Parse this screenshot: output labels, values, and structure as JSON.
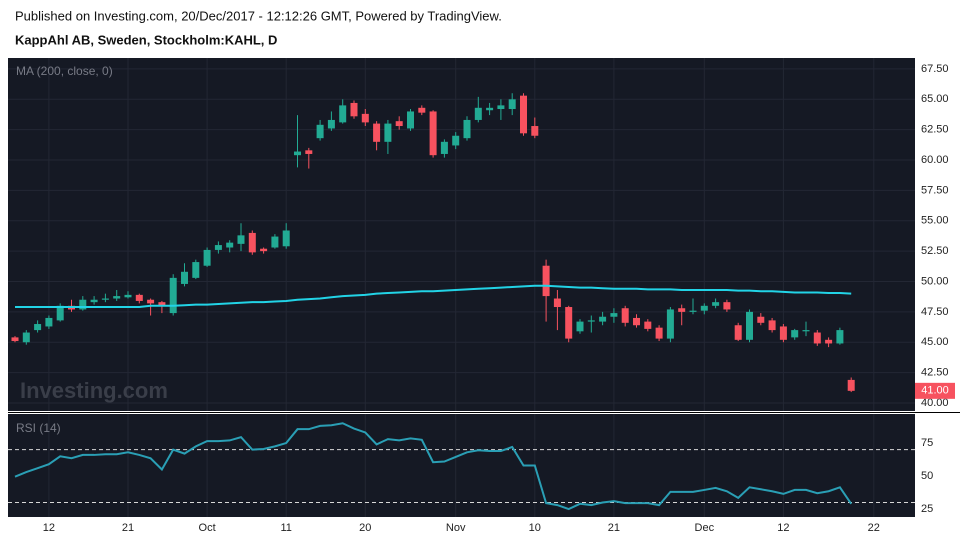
{
  "header": {
    "published": "Published on Investing.com, 20/Dec/2017 - 12:12:26 GMT, Powered by TradingView.",
    "symbol": "KappAhl AB, Sweden, Stockholm:KAHL, D",
    "watermark": "Investing.com"
  },
  "chart_data": [
    {
      "type": "candlestick",
      "series_label": "MA (200, close, 0)",
      "categories": [
        "2017-09-07",
        "2017-09-08",
        "2017-09-11",
        "2017-09-12",
        "2017-09-13",
        "2017-09-14",
        "2017-09-15",
        "2017-09-18",
        "2017-09-19",
        "2017-09-20",
        "2017-09-21",
        "2017-09-22",
        "2017-09-25",
        "2017-09-26",
        "2017-09-27",
        "2017-09-28",
        "2017-09-29",
        "2017-10-02",
        "2017-10-03",
        "2017-10-04",
        "2017-10-05",
        "2017-10-06",
        "2017-10-09",
        "2017-10-10",
        "2017-10-11",
        "2017-10-12",
        "2017-10-13",
        "2017-10-16",
        "2017-10-17",
        "2017-10-18",
        "2017-10-19",
        "2017-10-20",
        "2017-10-23",
        "2017-10-24",
        "2017-10-25",
        "2017-10-26",
        "2017-10-27",
        "2017-10-30",
        "2017-10-31",
        "2017-11-01",
        "2017-11-02",
        "2017-11-03",
        "2017-11-06",
        "2017-11-07",
        "2017-11-08",
        "2017-11-09",
        "2017-11-10",
        "2017-11-13",
        "2017-11-14",
        "2017-11-15",
        "2017-11-16",
        "2017-11-17",
        "2017-11-20",
        "2017-11-21",
        "2017-11-22",
        "2017-11-23",
        "2017-11-24",
        "2017-11-27",
        "2017-11-28",
        "2017-11-29",
        "2017-11-30",
        "2017-12-01",
        "2017-12-04",
        "2017-12-05",
        "2017-12-06",
        "2017-12-07",
        "2017-12-08",
        "2017-12-11",
        "2017-12-12",
        "2017-12-13",
        "2017-12-14",
        "2017-12-15",
        "2017-12-18",
        "2017-12-19",
        "2017-12-20"
      ],
      "open": [
        45.4,
        45.0,
        46.0,
        46.3,
        46.8,
        48.0,
        47.7,
        48.3,
        48.5,
        48.6,
        48.7,
        48.9,
        48.5,
        48.3,
        47.4,
        49.8,
        50.3,
        51.3,
        52.6,
        52.8,
        53.1,
        54.0,
        52.7,
        52.8,
        52.9,
        60.4,
        60.8,
        61.8,
        62.6,
        63.1,
        64.7,
        63.8,
        63.0,
        61.5,
        63.2,
        62.6,
        64.3,
        64.0,
        60.5,
        61.2,
        61.8,
        63.3,
        64.1,
        64.2,
        64.2,
        65.3,
        62.8,
        51.3,
        48.6,
        47.9,
        45.9,
        46.7,
        46.7,
        47.1,
        47.8,
        47.0,
        46.7,
        46.2,
        45.3,
        47.8,
        47.5,
        47.6,
        48.0,
        48.3,
        46.4,
        45.2,
        47.1,
        46.8,
        46.3,
        45.4,
        45.9,
        45.8,
        45.2,
        44.9,
        41.9
      ],
      "high": [
        45.5,
        46.0,
        46.8,
        47.2,
        48.2,
        48.5,
        48.8,
        48.8,
        49.0,
        49.3,
        49.2,
        49.0,
        48.6,
        48.4,
        50.6,
        51.5,
        51.8,
        52.8,
        53.3,
        53.4,
        54.8,
        54.2,
        52.8,
        53.9,
        54.8,
        63.7,
        61.0,
        63.3,
        64.0,
        65.0,
        64.9,
        64.2,
        63.2,
        63.3,
        63.6,
        64.2,
        64.5,
        64.1,
        61.7,
        62.3,
        63.6,
        65.2,
        64.7,
        65.0,
        65.5,
        65.5,
        63.5,
        51.8,
        49.3,
        48.0,
        46.9,
        47.2,
        47.5,
        47.8,
        48.0,
        47.3,
        46.9,
        46.4,
        47.9,
        48.1,
        48.6,
        48.2,
        48.6,
        48.5,
        46.6,
        47.7,
        47.4,
        47.0,
        46.5,
        46.1,
        46.7,
        46.0,
        45.4,
        46.2,
        42.1
      ],
      "low": [
        45.0,
        44.8,
        45.8,
        46.1,
        46.7,
        47.5,
        47.6,
        48.1,
        48.3,
        48.4,
        48.6,
        48.2,
        47.2,
        47.4,
        47.2,
        49.6,
        50.2,
        51.2,
        52.3,
        52.4,
        52.5,
        52.2,
        52.3,
        52.7,
        52.7,
        59.4,
        59.3,
        61.6,
        62.4,
        63.0,
        63.4,
        62.8,
        60.8,
        60.5,
        62.5,
        62.4,
        63.7,
        60.2,
        60.2,
        60.9,
        61.6,
        63.1,
        63.7,
        63.3,
        63.7,
        62.0,
        61.8,
        46.7,
        46.0,
        45.0,
        45.7,
        45.8,
        46.4,
        46.6,
        46.3,
        46.2,
        45.9,
        45.1,
        45.0,
        46.4,
        47.3,
        47.3,
        47.8,
        47.5,
        45.1,
        45.0,
        46.4,
        45.8,
        45.0,
        45.2,
        45.5,
        44.7,
        44.6,
        44.8,
        40.9
      ],
      "close": [
        45.1,
        45.8,
        46.5,
        47.0,
        48.0,
        47.7,
        48.5,
        48.5,
        48.6,
        48.8,
        48.9,
        48.4,
        48.2,
        48.0,
        50.3,
        50.8,
        51.6,
        52.6,
        53.0,
        53.2,
        53.8,
        52.4,
        52.5,
        53.7,
        54.2,
        60.7,
        60.5,
        62.9,
        63.3,
        64.5,
        63.6,
        63.1,
        61.5,
        63.0,
        62.8,
        64.0,
        63.9,
        60.4,
        61.5,
        62.0,
        63.3,
        64.3,
        64.3,
        64.5,
        65.0,
        62.2,
        62.0,
        48.8,
        47.9,
        45.3,
        46.7,
        46.8,
        47.1,
        47.4,
        46.6,
        46.4,
        46.1,
        45.3,
        47.7,
        47.5,
        47.6,
        48.0,
        48.3,
        47.7,
        45.2,
        47.5,
        46.6,
        46.0,
        45.2,
        46.0,
        46.0,
        44.9,
        44.9,
        46.0,
        41.0
      ],
      "up_color": "#22ab94",
      "down_color": "#f7525f",
      "ma": {
        "color": "#22d3e6",
        "values": [
          47.9,
          47.9,
          47.9,
          47.9,
          47.9,
          47.9,
          47.9,
          47.9,
          47.9,
          47.9,
          47.9,
          47.9,
          48.0,
          48.0,
          48.0,
          48.05,
          48.1,
          48.1,
          48.15,
          48.2,
          48.25,
          48.3,
          48.3,
          48.35,
          48.4,
          48.5,
          48.55,
          48.6,
          48.7,
          48.8,
          48.85,
          48.9,
          49.0,
          49.05,
          49.1,
          49.15,
          49.2,
          49.2,
          49.25,
          49.3,
          49.35,
          49.4,
          49.45,
          49.5,
          49.55,
          49.6,
          49.65,
          49.65,
          49.6,
          49.55,
          49.5,
          49.5,
          49.45,
          49.4,
          49.4,
          49.4,
          49.35,
          49.35,
          49.35,
          49.3,
          49.3,
          49.3,
          49.3,
          49.3,
          49.25,
          49.25,
          49.2,
          49.2,
          49.15,
          49.1,
          49.1,
          49.1,
          49.05,
          49.05,
          49.0
        ]
      },
      "last_value_label": "41.00",
      "ylim": [
        39.34,
        68.4
      ],
      "yticks": [
        {
          "value": 40,
          "label": "40.00"
        },
        {
          "value": 42.5,
          "label": "42.50"
        },
        {
          "value": 45,
          "label": "45.00"
        },
        {
          "value": 47.5,
          "label": "47.50"
        },
        {
          "value": 50,
          "label": "50.00"
        },
        {
          "value": 52.5,
          "label": "52.50"
        },
        {
          "value": 55,
          "label": "55.00"
        },
        {
          "value": 57.5,
          "label": "57.50"
        },
        {
          "value": 60,
          "label": "60.00"
        },
        {
          "value": 62.5,
          "label": "62.50"
        },
        {
          "value": 65,
          "label": "65.00"
        },
        {
          "value": 67.5,
          "label": "67.50"
        }
      ],
      "grid": true
    },
    {
      "type": "line",
      "series_label": "RSI (14)",
      "color": "#2a9fb5",
      "values": [
        49.5,
        53,
        56,
        59,
        65,
        63.5,
        66,
        66,
        66.5,
        66.5,
        68,
        66,
        63.5,
        55,
        70,
        67,
        72.5,
        76.5,
        76.5,
        77,
        79.5,
        70,
        70.5,
        72.5,
        75,
        85.5,
        85.5,
        88,
        88.5,
        90,
        86,
        83,
        74,
        78,
        77,
        78.5,
        77.5,
        60.5,
        61,
        64.5,
        68,
        69.5,
        69,
        69,
        72,
        58,
        58,
        29.5,
        28,
        25,
        29,
        28,
        30,
        31,
        29.5,
        29.5,
        29.5,
        28,
        38,
        38,
        38,
        39.5,
        41,
        38.5,
        33.5,
        41.5,
        40,
        38.5,
        36.5,
        39.5,
        39.5,
        37,
        38.5,
        41.5,
        29
      ],
      "bands": [
        30,
        70
      ],
      "ylim": [
        19,
        97
      ],
      "yticks": [
        25,
        50,
        75
      ],
      "xticks": [
        {
          "value": "2017-09-12",
          "label": "12"
        },
        {
          "value": "2017-09-21",
          "label": "21"
        },
        {
          "value": "2017-10-02",
          "label": "Oct"
        },
        {
          "value": "2017-10-11",
          "label": "11"
        },
        {
          "value": "2017-10-20",
          "label": "20"
        },
        {
          "value": "2017-11-01",
          "label": "Nov"
        },
        {
          "value": "2017-11-10",
          "label": "10"
        },
        {
          "value": "2017-11-21",
          "label": "21"
        },
        {
          "value": "2017-12-01",
          "label": "Dec"
        },
        {
          "value": "2017-12-12",
          "label": "12"
        },
        {
          "value": "2017-12-22",
          "label": "22"
        }
      ]
    }
  ]
}
